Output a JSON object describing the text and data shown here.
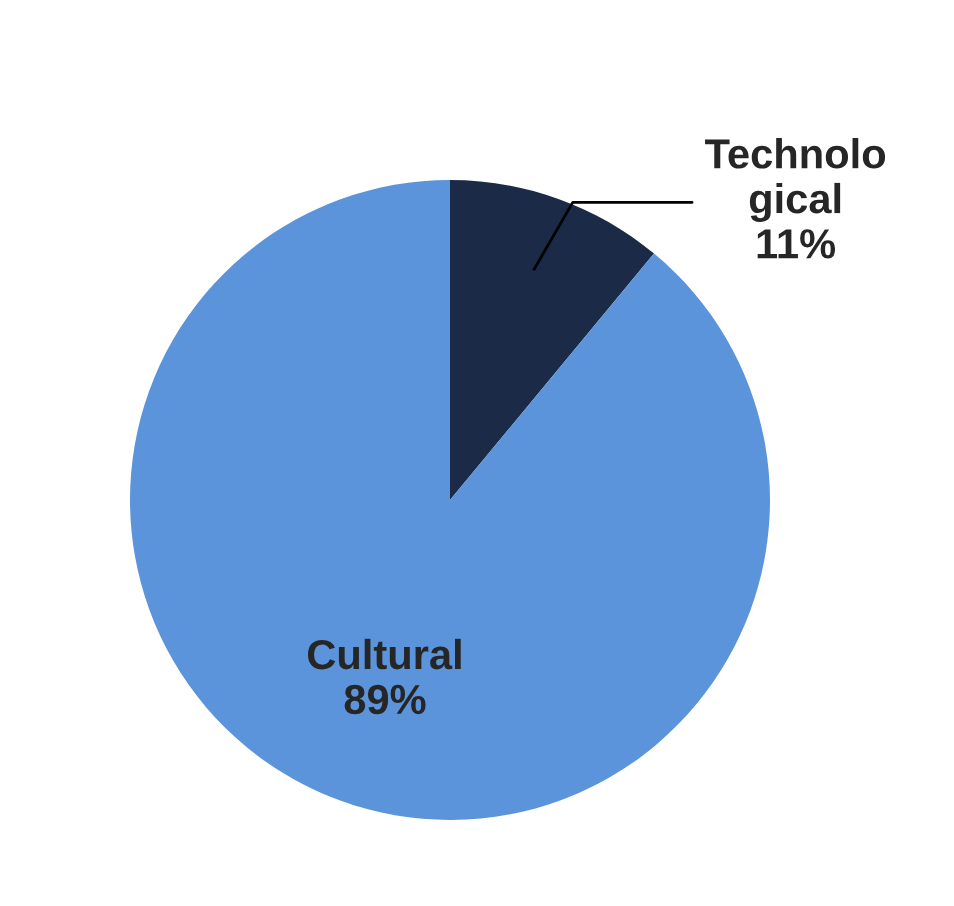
{
  "chart_data": {
    "type": "pie",
    "categories": [
      "Technolo\ngical",
      "Cultural"
    ],
    "values": [
      11,
      89
    ],
    "colors": [
      "#1b2b47",
      "#5b94da"
    ],
    "value_labels": [
      "11%",
      "89%"
    ],
    "legend": false
  }
}
